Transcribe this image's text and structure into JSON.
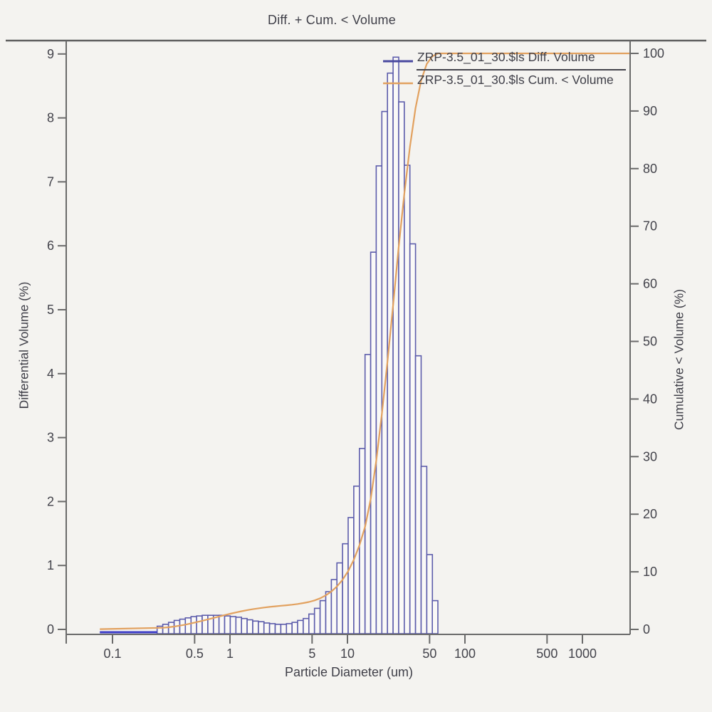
{
  "title": "Diff. + Cum. < Volume",
  "legend": {
    "entries": [
      {
        "label": "ZRP-3.5_01_30.$ls Diff. Volume",
        "color": "#4a4aa0",
        "sample": "line"
      },
      {
        "label": "ZRP-3.5_01_30.$ls Cum. < Volume",
        "color": "#e2a15f",
        "sample": "line"
      }
    ]
  },
  "colors": {
    "page_bg": "#f4f3f0",
    "bar_outline": "#5c5cab",
    "bar_fill": "#faf9f7",
    "flat_segment": "#3d3dc8",
    "cumulative_line": "#e2a15f",
    "axis": "#6a6a6a",
    "separator": "#5f5f5f",
    "text": "#43434b"
  },
  "chart_data": {
    "type": "bar+line",
    "title": "Diff. + Cum. < Volume",
    "xlabel": "Particle Diameter (um)",
    "ylabel_left": "Differential Volume (%)",
    "ylabel_right": "Cumulative < Volume (%)",
    "x_scale": "log",
    "x_range": [
      0.04,
      2500
    ],
    "y_left_range": [
      0,
      9
    ],
    "y_right_range": [
      0,
      100
    ],
    "grid": false,
    "legend_position": "top-right",
    "x_ticks": [
      0.1,
      0.5,
      1,
      5,
      10,
      50,
      100,
      500,
      1000
    ],
    "x_tick_labels": [
      "0.1",
      "0.5",
      "1",
      "5",
      "10",
      "50",
      "100",
      "500",
      "1000"
    ],
    "y_left_ticks": [
      0,
      1,
      2,
      3,
      4,
      5,
      6,
      7,
      8,
      9
    ],
    "y_right_ticks": [
      0,
      10,
      20,
      30,
      40,
      50,
      60,
      70,
      80,
      90,
      100
    ],
    "flat_segment": {
      "d_from": 0.078,
      "d_to": 0.24,
      "value": 0.03
    },
    "series": [
      {
        "name": "ZRP-3.5_01_30.$ls Diff. Volume",
        "axis": "left",
        "style": "outlined-histogram"
      },
      {
        "name": "ZRP-3.5_01_30.$ls Cum. < Volume",
        "axis": "right",
        "style": "line",
        "plateau": 100
      }
    ],
    "bars_diff_volume_pct": [
      [
        0.24,
        0.05
      ],
      [
        0.268,
        0.08
      ],
      [
        0.3,
        0.11
      ],
      [
        0.335,
        0.14
      ],
      [
        0.374,
        0.16
      ],
      [
        0.417,
        0.18
      ],
      [
        0.466,
        0.2
      ],
      [
        0.52,
        0.21
      ],
      [
        0.58,
        0.22
      ],
      [
        0.648,
        0.22
      ],
      [
        0.723,
        0.22
      ],
      [
        0.807,
        0.22
      ],
      [
        0.901,
        0.21
      ],
      [
        1.006,
        0.2
      ],
      [
        1.123,
        0.19
      ],
      [
        1.254,
        0.17
      ],
      [
        1.4,
        0.15
      ],
      [
        1.562,
        0.13
      ],
      [
        1.744,
        0.12
      ],
      [
        1.947,
        0.1
      ],
      [
        2.173,
        0.09
      ],
      [
        2.426,
        0.08
      ],
      [
        2.708,
        0.08
      ],
      [
        3.023,
        0.09
      ],
      [
        3.375,
        0.11
      ],
      [
        3.767,
        0.14
      ],
      [
        4.205,
        0.17
      ],
      [
        4.694,
        0.24
      ],
      [
        5.24,
        0.33
      ],
      [
        5.85,
        0.45
      ],
      [
        6.53,
        0.59
      ],
      [
        7.29,
        0.78
      ],
      [
        8.138,
        1.04
      ],
      [
        9.084,
        1.34
      ],
      [
        10.14,
        1.75
      ],
      [
        11.32,
        2.24
      ],
      [
        12.64,
        2.83
      ],
      [
        14.11,
        4.3
      ],
      [
        15.75,
        5.9
      ],
      [
        17.58,
        7.25
      ],
      [
        19.62,
        8.1
      ],
      [
        21.9,
        8.7
      ],
      [
        24.45,
        8.95
      ],
      [
        27.29,
        8.25
      ],
      [
        30.47,
        7.26
      ],
      [
        34.01,
        6.03
      ],
      [
        37.96,
        4.28
      ],
      [
        42.38,
        2.55
      ],
      [
        47.3,
        1.17
      ],
      [
        52.8,
        0.45
      ]
    ],
    "last_bin_right_edge": 58.9
  }
}
